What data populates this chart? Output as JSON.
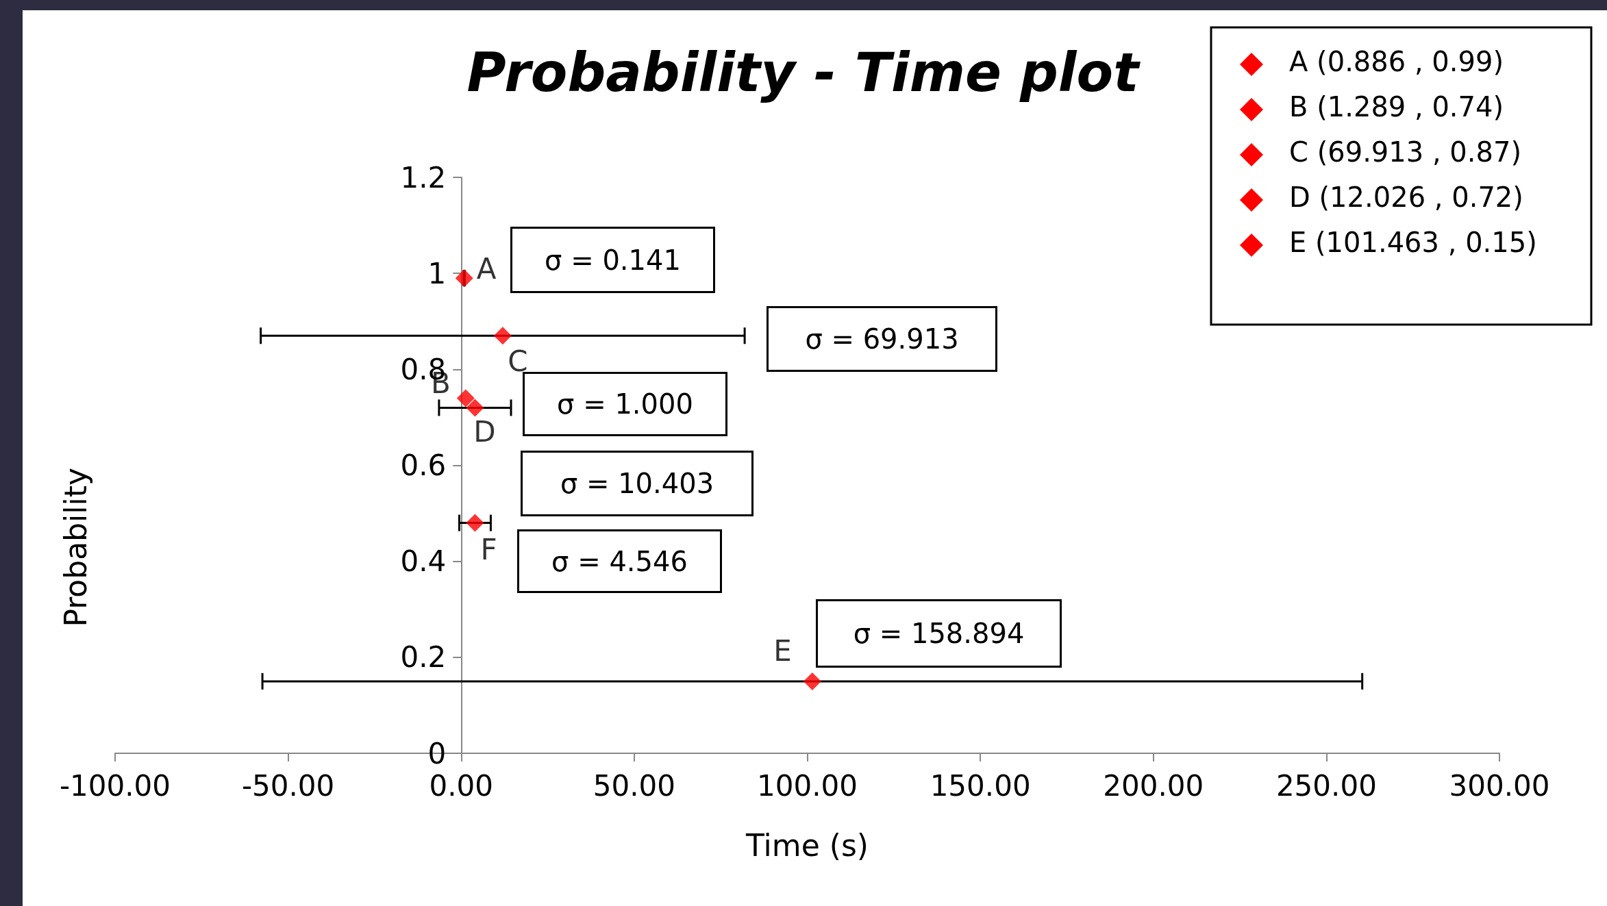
{
  "chart_data": {
    "type": "scatter",
    "title": "Probability - Time plot",
    "xlabel": "Time (s)",
    "ylabel": "Probability",
    "series": [
      {
        "name": "A",
        "color": "#ff0000",
        "x": [
          0.886
        ],
        "values": [
          0.99
        ],
        "xerrors": [
          0.141
        ]
      },
      {
        "name": "B",
        "color": "#ff0000",
        "x": [
          1.3
        ],
        "values": [
          0.74
        ]
      },
      {
        "name": "C",
        "color": "#ff0000",
        "x": [
          12
        ],
        "values": [
          0.87
        ],
        "xerrors": [
          69.913
        ]
      },
      {
        "name": "D",
        "color": "#ff0000",
        "x": [
          4
        ],
        "values": [
          0.72
        ],
        "xerrors": [
          10.403
        ]
      },
      {
        "name": "E",
        "color": "#ff0000",
        "x": [
          101.463
        ],
        "values": [
          0.15
        ],
        "xerrors": [
          158.894
        ]
      },
      {
        "name": "F",
        "color": "#ff0000",
        "x": [
          4
        ],
        "values": [
          0.48
        ],
        "xerrors": [
          4.546
        ]
      }
    ],
    "xlim": [
      -100,
      300
    ],
    "xticks": [
      {
        "value": -100,
        "label": "-100.00"
      },
      {
        "value": -50,
        "label": "-50.00"
      },
      {
        "value": 0,
        "label": "0.00"
      },
      {
        "value": 50,
        "label": "50.00"
      },
      {
        "value": 100,
        "label": "100.00"
      },
      {
        "value": 150,
        "label": "150.00"
      },
      {
        "value": 200,
        "label": "200.00"
      },
      {
        "value": 250,
        "label": "250.00"
      },
      {
        "value": 300,
        "label": "300.00"
      }
    ],
    "ylim": [
      0,
      1.2
    ],
    "yticks": [
      0,
      0.2,
      0.4,
      0.6,
      0.8,
      1,
      1.2
    ],
    "grid": false,
    "legend": false,
    "marker": "diamond",
    "annotations": [
      "σ = 0.141",
      "σ = 69.913",
      "σ = 1.000",
      "σ = 10.403",
      "σ = 4.546",
      "σ = 158.894",
      "A (0.886 , 0.99)",
      "B (1.289 , 0.74)",
      "C (69.913 , 0.87)",
      "D (12.026 , 0.72)",
      "E (101.463 , 0.15)"
    ]
  }
}
